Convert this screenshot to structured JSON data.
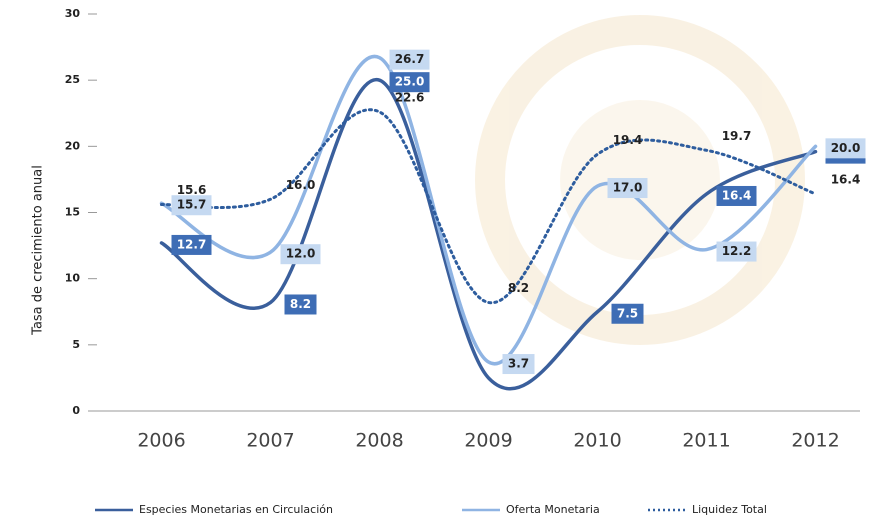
{
  "chart_data": {
    "type": "line",
    "y_label": "Tasa de crecimiento anual",
    "categories": [
      "2006",
      "2007",
      "2008",
      "2009",
      "2010",
      "2011",
      "2012"
    ],
    "series": [
      {
        "name": "Especies Monetarias en Circulación",
        "color": "#3a5f9c",
        "style": "solid",
        "label_style": "dark-box",
        "values": [
          12.7,
          8.2,
          25.0,
          2.5,
          7.5,
          16.4,
          19.6
        ],
        "value_labels": [
          "12.7",
          "8.2",
          "25.0",
          null,
          "7.5",
          "16.4",
          "19.6"
        ]
      },
      {
        "name": "Oferta Monetaria",
        "color": "#8fb4e3",
        "style": "solid",
        "label_style": "light-box",
        "values": [
          15.7,
          12.0,
          26.7,
          3.7,
          17.0,
          12.2,
          20.0
        ],
        "value_labels": [
          "15.7",
          "12.0",
          "26.7",
          "3.7",
          "17.0",
          "12.2",
          "20.0"
        ]
      },
      {
        "name": "Liquidez Total",
        "color": "#2e5d9e",
        "style": "dotted",
        "label_style": "plain",
        "values": [
          15.6,
          16.0,
          22.6,
          8.2,
          19.4,
          19.7,
          16.4
        ],
        "value_labels": [
          "15.6",
          "16.0",
          "22.6",
          "8.2",
          "19.4",
          "19.7",
          "16.4"
        ]
      }
    ],
    "ylim": [
      0,
      30
    ],
    "yticks": [
      0,
      5,
      10,
      15,
      20,
      25,
      30
    ]
  }
}
